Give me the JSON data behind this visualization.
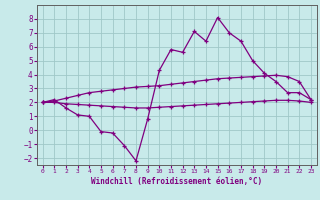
{
  "xlabel": "Windchill (Refroidissement éolien,°C)",
  "background_color": "#c8eaea",
  "grid_color": "#a0c8c8",
  "line_color": "#800080",
  "x_values": [
    0,
    1,
    2,
    3,
    4,
    5,
    6,
    7,
    8,
    9,
    10,
    11,
    12,
    13,
    14,
    15,
    16,
    17,
    18,
    19,
    20,
    21,
    22,
    23
  ],
  "y_main": [
    2.0,
    2.2,
    1.6,
    1.1,
    1.0,
    -0.1,
    -0.2,
    -1.1,
    -2.2,
    0.8,
    4.3,
    5.8,
    5.6,
    7.1,
    6.4,
    8.1,
    7.0,
    6.4,
    5.0,
    4.1,
    3.5,
    2.7,
    2.7,
    2.2
  ],
  "y_upper": [
    2.0,
    2.1,
    2.3,
    2.5,
    2.7,
    2.8,
    2.9,
    3.0,
    3.1,
    3.15,
    3.2,
    3.3,
    3.4,
    3.5,
    3.6,
    3.7,
    3.75,
    3.8,
    3.85,
    3.9,
    3.95,
    3.85,
    3.5,
    2.2
  ],
  "y_lower": [
    2.0,
    2.0,
    1.9,
    1.85,
    1.8,
    1.75,
    1.7,
    1.65,
    1.6,
    1.6,
    1.65,
    1.7,
    1.75,
    1.8,
    1.85,
    1.9,
    1.95,
    2.0,
    2.05,
    2.1,
    2.15,
    2.15,
    2.1,
    2.0
  ],
  "ylim": [
    -2.5,
    9.0
  ],
  "xlim": [
    -0.5,
    23.5
  ],
  "yticks": [
    -2,
    -1,
    0,
    1,
    2,
    3,
    4,
    5,
    6,
    7,
    8
  ],
  "xticks": [
    0,
    1,
    2,
    3,
    4,
    5,
    6,
    7,
    8,
    9,
    10,
    11,
    12,
    13,
    14,
    15,
    16,
    17,
    18,
    19,
    20,
    21,
    22,
    23
  ]
}
